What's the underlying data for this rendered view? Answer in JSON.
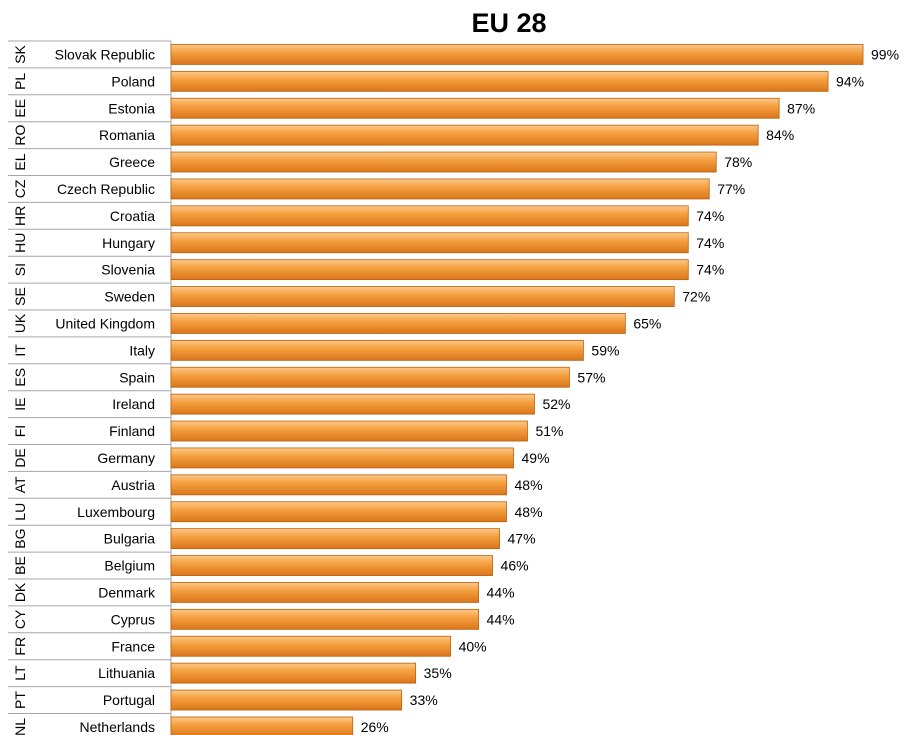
{
  "chart_data": {
    "type": "bar",
    "orientation": "horizontal",
    "title": "EU 28",
    "xlim": [
      0,
      100
    ],
    "value_suffix": "%",
    "codes": [
      "SK",
      "PL",
      "EE",
      "RO",
      "EL",
      "CZ",
      "HR",
      "HU",
      "SI",
      "SE",
      "UK",
      "IT",
      "ES",
      "IE",
      "FI",
      "DE",
      "AT",
      "LU",
      "BG",
      "BE",
      "DK",
      "CY",
      "FR",
      "LT",
      "PT",
      "NL"
    ],
    "categories": [
      "Slovak Republic",
      "Poland",
      "Estonia",
      "Romania",
      "Greece",
      "Czech Republic",
      "Croatia",
      "Hungary",
      "Slovenia",
      "Sweden",
      "United Kingdom",
      "Italy",
      "Spain",
      "Ireland",
      "Finland",
      "Germany",
      "Austria",
      "Luxembourg",
      "Bulgaria",
      "Belgium",
      "Denmark",
      "Cyprus",
      "France",
      "Lithuania",
      "Portugal",
      "Netherlands"
    ],
    "values": [
      99,
      94,
      87,
      84,
      78,
      77,
      74,
      74,
      74,
      72,
      65,
      59,
      57,
      52,
      51,
      49,
      48,
      48,
      47,
      46,
      44,
      44,
      40,
      35,
      33,
      26
    ],
    "bar_color": "#F0921E",
    "grid": false,
    "legend": "none"
  }
}
